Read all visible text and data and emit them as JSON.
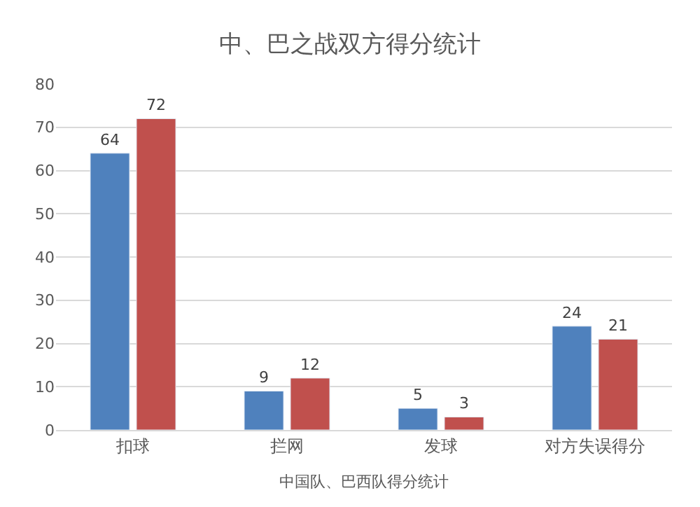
{
  "chart_data": {
    "type": "bar",
    "title": "中、巴之战双方得分统计",
    "xlabel": "中国队、巴西队得分统计",
    "categories": [
      "扣球",
      "拦网",
      "发球",
      "对方失误得分"
    ],
    "series": [
      {
        "color": "#4f81bd",
        "values": [
          64,
          9,
          5,
          24
        ]
      },
      {
        "color": "#c0504d",
        "values": [
          72,
          12,
          3,
          21
        ]
      }
    ],
    "ylim": [
      0,
      80
    ],
    "yticks": [
      0,
      10,
      20,
      30,
      40,
      50,
      60,
      70,
      80
    ],
    "grid": "y",
    "data_labels": true
  }
}
